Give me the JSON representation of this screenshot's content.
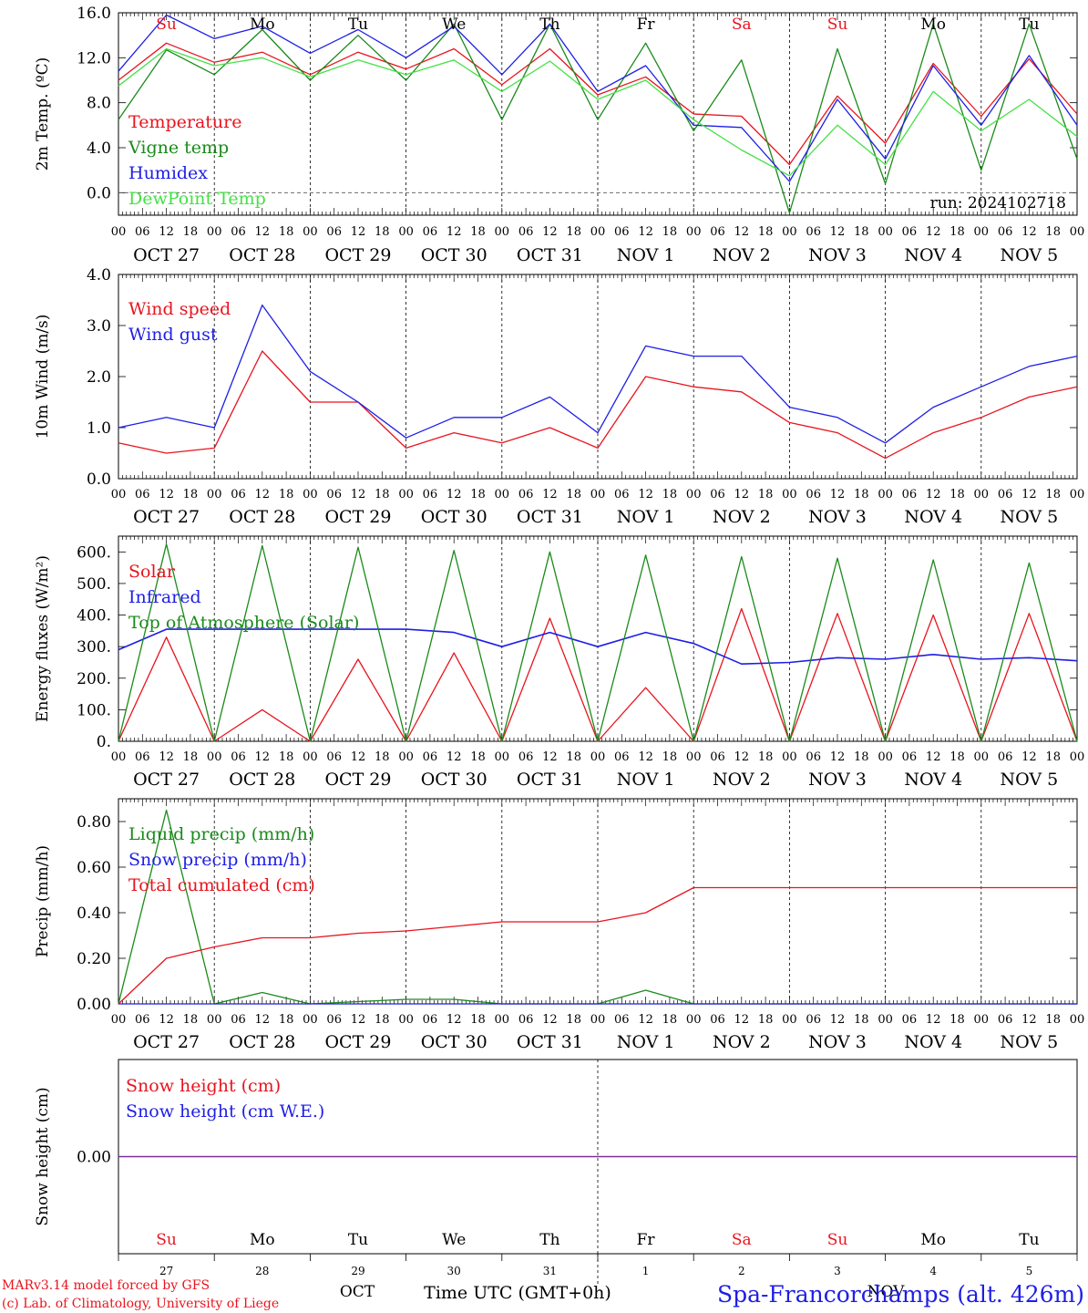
{
  "colors": {
    "red": "#e8141e",
    "green": "#1a8a1a",
    "blue": "#1e1ee6",
    "light_green": "#46e046",
    "purple": "#7a2a9a",
    "axis": "#000000"
  },
  "time_axis": {
    "start": "2024-10-27T00:00Z",
    "end": "2024-11-06T00:00Z",
    "hour_labels": [
      "00",
      "06",
      "12",
      "18"
    ],
    "date_labels": [
      "OCT 27",
      "OCT 28",
      "OCT 29",
      "OCT 30",
      "OCT 31",
      "NOV  1",
      "NOV  2",
      "NOV  3",
      "NOV  4",
      "NOV  5"
    ],
    "weekdays": [
      "Su",
      "Mo",
      "Tu",
      "We",
      "Th",
      "Fr",
      "Sa",
      "Su",
      "Mo",
      "Tu"
    ],
    "weekday_colors": [
      "red",
      "black",
      "black",
      "black",
      "black",
      "black",
      "red",
      "red",
      "black",
      "black"
    ],
    "day_numbers": [
      "27",
      "28",
      "29",
      "30",
      "31",
      "1",
      "2",
      "3",
      "4",
      "5"
    ],
    "month_left": "OCT",
    "month_right": "NOV",
    "label": "Time UTC (GMT+0h)"
  },
  "footer": {
    "credit1": "MARv3.14 model forced by GFS",
    "credit2": "(c) Lab. of Climatology, University of Liege",
    "station": "Spa-Francorchamps (alt. 426m)"
  },
  "chart_data": [
    {
      "type": "line",
      "ylabel": "2m Temp. (ºC)",
      "ylim": [
        -2,
        16
      ],
      "yticks": [
        "16.0",
        "12.0",
        "8.0",
        "4.0",
        "0.0"
      ],
      "yticks_values": [
        16,
        12,
        8,
        4,
        0
      ],
      "x": [
        "10-27 00:00",
        "10-27 12:00",
        "10-28 00:00",
        "10-28 12:00",
        "10-29 00:00",
        "10-29 12:00",
        "10-30 00:00",
        "10-30 12:00",
        "10-31 00:00",
        "10-31 12:00",
        "11-01 00:00",
        "11-01 12:00",
        "11-02 00:00",
        "11-02 12:00",
        "11-03 00:00",
        "11-03 12:00",
        "11-04 00:00",
        "11-04 12:00",
        "11-05 00:00",
        "11-05 12:00",
        "11-06 00:00"
      ],
      "annotation": "run: 2024102718",
      "legend": [
        "Temperature",
        "Vigne temp",
        "Humidex",
        "DewPoint Temp"
      ],
      "series": [
        {
          "name": "Temperature",
          "color": "red",
          "values": [
            10.0,
            13.3,
            11.6,
            12.5,
            10.5,
            12.5,
            11.0,
            12.8,
            9.6,
            12.8,
            8.7,
            10.3,
            7.0,
            6.8,
            2.5,
            8.6,
            4.4,
            11.5,
            6.8,
            11.9,
            7.0
          ]
        },
        {
          "name": "Vigne temp",
          "color": "green",
          "values": [
            6.5,
            12.7,
            10.5,
            14.5,
            10.0,
            14.0,
            10.0,
            15.0,
            6.5,
            15.0,
            6.5,
            13.3,
            5.5,
            11.8,
            -1.8,
            12.8,
            0.8,
            15.0,
            2.0,
            15.0,
            3.0
          ]
        },
        {
          "name": "Humidex",
          "color": "blue",
          "values": [
            10.8,
            15.8,
            13.7,
            14.8,
            12.4,
            14.5,
            12.0,
            14.8,
            10.5,
            15.0,
            9.0,
            11.3,
            6.0,
            5.8,
            1.0,
            8.3,
            3.0,
            11.3,
            6.0,
            12.2,
            6.0
          ]
        },
        {
          "name": "DewPoint Temp",
          "color": "light_green",
          "values": [
            9.5,
            12.8,
            11.3,
            12.0,
            10.3,
            11.8,
            10.5,
            11.8,
            9.0,
            11.7,
            8.3,
            10.0,
            6.5,
            3.8,
            1.5,
            6.0,
            2.5,
            9.0,
            5.5,
            8.3,
            5.0
          ]
        }
      ]
    },
    {
      "type": "line",
      "ylabel": "10m Wind (m/s)",
      "ylim": [
        0,
        4
      ],
      "yticks": [
        "4.0",
        "3.0",
        "2.0",
        "1.0",
        "0.0"
      ],
      "yticks_values": [
        4,
        3,
        2,
        1,
        0
      ],
      "x": [
        "10-27 00:00",
        "10-27 12:00",
        "10-28 00:00",
        "10-28 12:00",
        "10-29 00:00",
        "10-29 12:00",
        "10-30 00:00",
        "10-30 12:00",
        "10-31 00:00",
        "10-31 12:00",
        "11-01 00:00",
        "11-01 12:00",
        "11-02 00:00",
        "11-02 12:00",
        "11-03 00:00",
        "11-03 12:00",
        "11-04 00:00",
        "11-04 12:00",
        "11-05 00:00",
        "11-05 12:00",
        "11-06 00:00"
      ],
      "legend": [
        "Wind speed",
        "Wind gust"
      ],
      "series": [
        {
          "name": "Wind speed",
          "color": "red",
          "values": [
            0.7,
            0.5,
            0.6,
            2.5,
            1.5,
            1.5,
            0.6,
            0.9,
            0.7,
            1.0,
            0.6,
            2.0,
            1.8,
            1.7,
            1.1,
            0.9,
            0.4,
            0.9,
            1.2,
            1.6,
            1.8
          ]
        },
        {
          "name": "Wind gust",
          "color": "blue",
          "values": [
            1.0,
            1.2,
            1.0,
            3.4,
            2.1,
            1.5,
            0.8,
            1.2,
            1.2,
            1.6,
            0.9,
            2.6,
            2.4,
            2.4,
            1.4,
            1.2,
            0.7,
            1.4,
            1.8,
            2.2,
            2.4
          ]
        }
      ]
    },
    {
      "type": "line",
      "ylabel": "Energy fluxes (W/m²)",
      "ylim": [
        0,
        650
      ],
      "yticks": [
        "600.",
        "500.",
        "400.",
        "300.",
        "200.",
        "100.",
        "0."
      ],
      "yticks_values": [
        600,
        500,
        400,
        300,
        200,
        100,
        0
      ],
      "x": [
        "10-27 00:00",
        "10-27 12:00",
        "10-28 00:00",
        "10-28 12:00",
        "10-29 00:00",
        "10-29 12:00",
        "10-30 00:00",
        "10-30 12:00",
        "10-31 00:00",
        "10-31 12:00",
        "11-01 00:00",
        "11-01 12:00",
        "11-02 00:00",
        "11-02 12:00",
        "11-03 00:00",
        "11-03 12:00",
        "11-04 00:00",
        "11-04 12:00",
        "11-05 00:00",
        "11-05 12:00",
        "11-06 00:00"
      ],
      "legend": [
        "Solar",
        "Infrared",
        "Top of Atmosphere (Solar)"
      ],
      "series": [
        {
          "name": "Solar",
          "color": "red",
          "values": [
            0,
            330,
            0,
            100,
            0,
            260,
            0,
            280,
            0,
            390,
            0,
            170,
            0,
            420,
            0,
            405,
            0,
            400,
            0,
            405,
            0
          ]
        },
        {
          "name": "Infrared",
          "color": "blue",
          "values": [
            290,
            355,
            355,
            355,
            355,
            355,
            355,
            345,
            300,
            345,
            300,
            345,
            310,
            245,
            250,
            265,
            260,
            275,
            260,
            265,
            255
          ]
        },
        {
          "name": "Top of Atmosphere (Solar)",
          "color": "green",
          "values": [
            0,
            625,
            0,
            620,
            0,
            615,
            0,
            605,
            0,
            600,
            0,
            590,
            0,
            585,
            0,
            580,
            0,
            575,
            0,
            565,
            0
          ]
        }
      ]
    },
    {
      "type": "line",
      "ylabel": "Precip (mm/h)",
      "ylim": [
        0,
        0.9
      ],
      "yticks": [
        "0.80",
        "0.60",
        "0.40",
        "0.20",
        "0.00"
      ],
      "yticks_values": [
        0.8,
        0.6,
        0.4,
        0.2,
        0
      ],
      "x": [
        "10-27 00:00",
        "10-27 12:00",
        "10-28 00:00",
        "10-28 12:00",
        "10-29 00:00",
        "10-29 12:00",
        "10-30 00:00",
        "10-30 12:00",
        "10-31 00:00",
        "10-31 12:00",
        "11-01 00:00",
        "11-01 12:00",
        "11-02 00:00",
        "11-02 12:00",
        "11-03 00:00",
        "11-03 12:00",
        "11-04 00:00",
        "11-04 12:00",
        "11-05 00:00",
        "11-05 12:00",
        "11-06 00:00"
      ],
      "legend": [
        "Liquid precip (mm/h)",
        "Snow precip (mm/h)",
        "Total cumulated (cm)"
      ],
      "series": [
        {
          "name": "Liquid precip (mm/h)",
          "color": "green",
          "values": [
            0,
            0.85,
            0.0,
            0.05,
            0.0,
            0.01,
            0.02,
            0.02,
            0.0,
            0.0,
            0.0,
            0.06,
            0.0,
            0.0,
            0.0,
            0.0,
            0.0,
            0.0,
            0.0,
            0.0,
            0.0
          ]
        },
        {
          "name": "Snow precip (mm/h)",
          "color": "blue",
          "values": [
            0,
            0,
            0,
            0,
            0,
            0,
            0,
            0,
            0,
            0,
            0,
            0,
            0,
            0,
            0,
            0,
            0,
            0,
            0,
            0,
            0
          ]
        },
        {
          "name": "Total cumulated (cm)",
          "color": "red",
          "values": [
            0,
            0.2,
            0.25,
            0.29,
            0.29,
            0.31,
            0.32,
            0.34,
            0.36,
            0.36,
            0.36,
            0.4,
            0.51,
            0.51,
            0.51,
            0.51,
            0.51,
            0.51,
            0.51,
            0.51,
            0.51
          ]
        }
      ]
    },
    {
      "type": "line",
      "ylabel": "Snow height (cm)",
      "ylim": [
        -1,
        1
      ],
      "yticks": [
        "0.00"
      ],
      "yticks_values": [
        0
      ],
      "x": [
        "10-27 00:00",
        "11-06 00:00"
      ],
      "legend": [
        "Snow height (cm)",
        "Snow height (cm W.E.)"
      ],
      "series": [
        {
          "name": "Snow height (cm)",
          "color": "red",
          "values": [
            0,
            0
          ]
        },
        {
          "name": "Snow height (cm W.E.)",
          "color": "blue",
          "values": [
            0,
            0
          ]
        }
      ]
    }
  ]
}
